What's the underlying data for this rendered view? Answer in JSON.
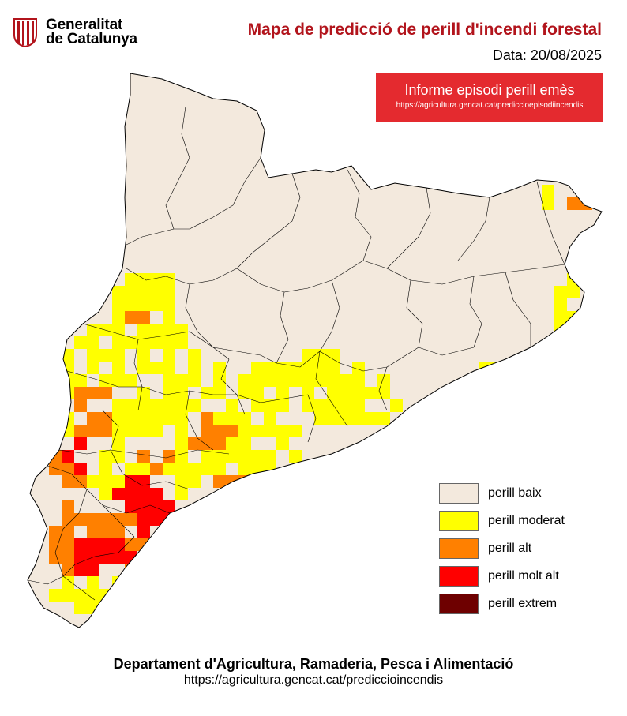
{
  "header": {
    "logo_line1": "Generalitat",
    "logo_line2": "de Catalunya",
    "title": "Mapa de predicció de perill d'incendi forestal",
    "date_label": "Data:",
    "date_value": "20/08/2025"
  },
  "alert": {
    "label": "Informe episodi perill emès",
    "url": "https://agricultura.gencat.cat/prediccioepisodiincendis"
  },
  "map": {
    "region": "Catalunya",
    "background": "#f3e9dd",
    "border": "#000000"
  },
  "legend": [
    {
      "label": "perill baix",
      "color": "#f3e9dd"
    },
    {
      "label": "perill moderat",
      "color": "#ffff00"
    },
    {
      "label": "perill alt",
      "color": "#ff8000"
    },
    {
      "label": "perill molt alt",
      "color": "#ff0000"
    },
    {
      "label": "perill extrem",
      "color": "#6e0000"
    }
  ],
  "footer": {
    "department": "Departament d'Agricultura, Ramaderia, Pesca i Alimentació",
    "url": "https://agricultura.gencat.cat/prediccioincendis"
  }
}
